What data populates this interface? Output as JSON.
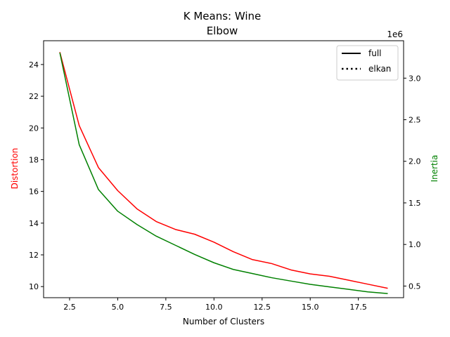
{
  "chart_data": {
    "type": "line",
    "title_line1": "K Means: Wine",
    "title_line2": "Elbow",
    "xlabel": "Number of Clusters",
    "ylabel_left": "Distortion",
    "ylabel_right": "Inertia",
    "right_axis_offset_label": "1e6",
    "xlim": [
      1.15,
      19.85
    ],
    "ylim_left": [
      9.3,
      25.5
    ],
    "ylim_right": [
      0.36,
      3.45
    ],
    "x_ticks": [
      2.5,
      5.0,
      7.5,
      10.0,
      12.5,
      15.0,
      17.5
    ],
    "x_tick_labels": [
      "2.5",
      "5.0",
      "7.5",
      "10.0",
      "12.5",
      "15.0",
      "17.5"
    ],
    "left_ticks": [
      10,
      12,
      14,
      16,
      18,
      20,
      22,
      24
    ],
    "left_tick_labels": [
      "10",
      "12",
      "14",
      "16",
      "18",
      "20",
      "22",
      "24"
    ],
    "right_ticks": [
      0.5,
      1.0,
      1.5,
      2.0,
      2.5,
      3.0
    ],
    "right_tick_labels": [
      "0.5",
      "1.0",
      "1.5",
      "2.0",
      "2.5",
      "3.0"
    ],
    "x": [
      2,
      3,
      4,
      5,
      6,
      7,
      8,
      9,
      10,
      11,
      12,
      13,
      14,
      15,
      16,
      17,
      18,
      19
    ],
    "series": [
      {
        "axis": "left",
        "color": "#ff0000",
        "values": [
          24.75,
          20.15,
          17.5,
          16.05,
          14.9,
          14.1,
          13.6,
          13.3,
          12.8,
          12.2,
          11.7,
          11.45,
          11.05,
          10.8,
          10.65,
          10.4,
          10.15,
          9.9
        ]
      },
      {
        "axis": "right",
        "color": "#008000",
        "values": [
          3.3,
          2.2,
          1.66,
          1.4,
          1.24,
          1.1,
          0.99,
          0.88,
          0.78,
          0.7,
          0.65,
          0.6,
          0.56,
          0.52,
          0.49,
          0.46,
          0.43,
          0.41
        ]
      }
    ],
    "legend": {
      "placement": "top-right",
      "entries": [
        {
          "label": "full",
          "style": "solid"
        },
        {
          "label": "elkan",
          "style": "dotted"
        }
      ]
    }
  }
}
